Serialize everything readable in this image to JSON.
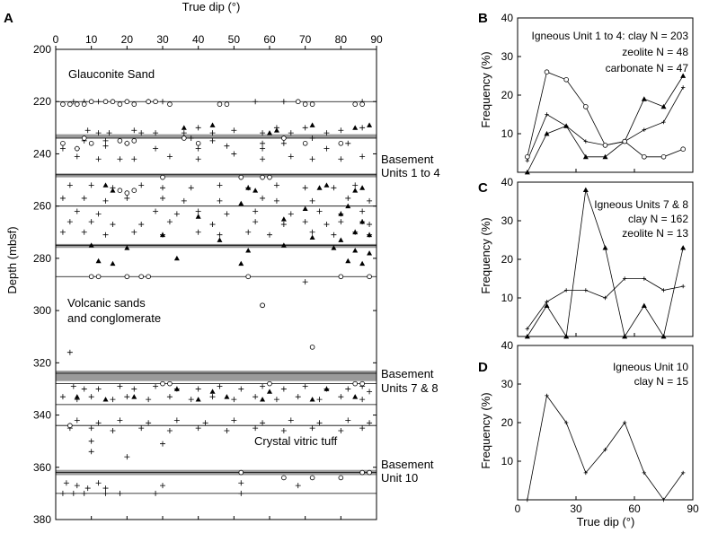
{
  "panels": {
    "A": {
      "letter": "A",
      "xlabel": "True dip (°)",
      "ylabel": "Depth (mbsf)",
      "xticks": [
        "0",
        "10",
        "20",
        "30",
        "40",
        "50",
        "60",
        "70",
        "80",
        "90"
      ],
      "yticks": [
        "200",
        "220",
        "240",
        "260",
        "280",
        "300",
        "320",
        "340",
        "360",
        "380"
      ],
      "labels": {
        "glauconite": "Glauconite Sand",
        "basement_1_4_a": "Basement",
        "basement_1_4_b": "Units 1 to 4",
        "volcanic_a": "Volcanic sands",
        "volcanic_b": "and conglomerate",
        "basement_7_8_a": "Basement",
        "basement_7_8_b": "Units 7 & 8",
        "crystal": "Crystal vitric tuff",
        "basement_10_a": "Basement",
        "basement_10_b": "Unit 10"
      }
    },
    "B": {
      "letter": "B",
      "legend": [
        "Igneous Unit 1 to 4: clay N = 203",
        "zeolite N = 48",
        "carbonate N = 47"
      ]
    },
    "C": {
      "letter": "C",
      "legend": [
        "Igneous Units 7 & 8",
        "clay N = 162",
        "zeolite N = 13"
      ]
    },
    "D": {
      "letter": "D",
      "legend": [
        "Igneous Unit 10",
        "clay N = 15"
      ],
      "xlabel": "True dip (°)"
    },
    "freq_ylabel": "Frequency (%)",
    "freq_yticks": [
      "10",
      "20",
      "30",
      "40"
    ],
    "freq_xticks": [
      "0",
      "30",
      "60",
      "90"
    ]
  },
  "chart_data": [
    {
      "type": "scatter",
      "panel": "A",
      "xlabel": "True dip (°)",
      "ylabel": "Depth (mbsf)",
      "xlim": [
        0,
        90
      ],
      "ylim": [
        380,
        200
      ],
      "y_inverted": true,
      "x_axis_position": "top",
      "boundaries": [
        220,
        234,
        248,
        260,
        275,
        287,
        324,
        328,
        336,
        344,
        362,
        370
      ],
      "shaded_bands": [
        [
          232.5,
          234
        ],
        [
          247.5,
          249
        ],
        [
          274.5,
          276
        ],
        [
          323,
          327
        ],
        [
          361,
          363
        ]
      ],
      "series": [
        {
          "name": "clay",
          "marker": "plus",
          "x": [
            5,
            8,
            12,
            26,
            30,
            56,
            64,
            86,
            9,
            12,
            15,
            22,
            24,
            28,
            36,
            40,
            44,
            50,
            58,
            62,
            66,
            70,
            76,
            80,
            86,
            8,
            14,
            20,
            38,
            44,
            58,
            64,
            72,
            82,
            2,
            6,
            14,
            28,
            40,
            48,
            58,
            76,
            6,
            12,
            18,
            22,
            32,
            40,
            50,
            58,
            66,
            72,
            80,
            86,
            4,
            10,
            16,
            24,
            30,
            38,
            46,
            54,
            62,
            70,
            78,
            84,
            2,
            8,
            14,
            20,
            30,
            36,
            46,
            58,
            62,
            72,
            82,
            88,
            6,
            12,
            28,
            34,
            40,
            48,
            56,
            66,
            74,
            80,
            86,
            4,
            10,
            16,
            24,
            32,
            44,
            56,
            64,
            70,
            76,
            80,
            86,
            88,
            2,
            8,
            14,
            22,
            30,
            40,
            46,
            54,
            60,
            72,
            78,
            84,
            88,
            70,
            4,
            5,
            8,
            12,
            18,
            22,
            28,
            34,
            40,
            46,
            52,
            58,
            64,
            70,
            76,
            82,
            86,
            88,
            2,
            6,
            10,
            16,
            20,
            26,
            32,
            38,
            44,
            50,
            56,
            62,
            68,
            74,
            80,
            86,
            6,
            12,
            18,
            26,
            34,
            42,
            50,
            58,
            66,
            74,
            82,
            88,
            4,
            10,
            16,
            24,
            32,
            40,
            48,
            56,
            64,
            72,
            80,
            86,
            10,
            10,
            20,
            30,
            3,
            6,
            9,
            12,
            14,
            30,
            52,
            68,
            2,
            5,
            8,
            14,
            18,
            28,
            52
          ],
          "y": [
            220,
            220,
            220,
            220,
            220,
            220,
            220,
            220,
            231,
            232,
            232,
            231,
            232,
            232,
            232,
            230,
            232,
            231,
            232,
            230,
            232,
            230,
            232,
            231,
            230,
            235,
            235,
            236,
            234,
            235,
            236,
            236,
            234,
            236,
            238,
            238,
            237,
            238,
            238,
            237,
            238,
            238,
            241,
            242,
            242,
            242,
            241,
            242,
            240,
            242,
            241,
            242,
            242,
            241,
            252,
            252,
            253,
            252,
            253,
            253,
            252,
            253,
            252,
            253,
            253,
            252,
            257,
            257,
            258,
            257,
            257,
            258,
            258,
            257,
            258,
            258,
            257,
            258,
            262,
            263,
            262,
            263,
            262,
            263,
            262,
            263,
            262,
            263,
            262,
            266,
            266,
            267,
            267,
            266,
            267,
            266,
            267,
            266,
            267,
            266,
            266,
            267,
            270,
            270,
            271,
            270,
            271,
            270,
            271,
            270,
            271,
            270,
            271,
            270,
            271,
            289,
            316,
            329,
            330,
            330,
            329,
            330,
            329,
            330,
            330,
            329,
            330,
            329,
            330,
            329,
            330,
            330,
            329,
            331,
            333,
            334,
            333,
            334,
            333,
            334,
            333,
            334,
            333,
            334,
            333,
            334,
            333,
            334,
            333,
            334,
            342,
            343,
            342,
            343,
            342,
            343,
            342,
            343,
            342,
            343,
            342,
            343,
            345,
            345,
            346,
            345,
            346,
            345,
            346,
            345,
            346,
            345,
            346,
            345,
            350,
            354,
            356,
            351,
            366,
            367,
            368,
            366,
            368,
            367,
            366,
            367,
            370,
            370,
            370,
            370,
            370,
            370,
            370
          ]
        },
        {
          "name": "zeolite",
          "marker": "filled-triangle",
          "x": [
            36,
            44,
            60,
            62,
            72,
            84,
            88,
            14,
            16,
            54,
            56,
            74,
            76,
            84,
            86,
            52,
            70,
            82,
            40,
            64,
            80,
            86,
            30,
            46,
            72,
            80,
            84,
            88,
            10,
            20,
            54,
            64,
            78,
            84,
            88,
            12,
            16,
            34,
            52,
            82,
            86,
            34,
            44,
            60,
            76,
            6,
            14,
            22,
            40,
            48,
            58,
            72,
            84
          ],
          "y": [
            230,
            229,
            232,
            231,
            229,
            230,
            229,
            252,
            254,
            253,
            254,
            253,
            252,
            254,
            253,
            259,
            261,
            260,
            264,
            265,
            263,
            266,
            271,
            273,
            272,
            273,
            270,
            271,
            275,
            276,
            277,
            275,
            276,
            277,
            278,
            281,
            282,
            280,
            282,
            281,
            282,
            330,
            331,
            331,
            330,
            333,
            334,
            333,
            334,
            333,
            334,
            334,
            333
          ]
        },
        {
          "name": "carbonate",
          "marker": "open-circle",
          "x": [
            2,
            4,
            6,
            8,
            10,
            14,
            16,
            18,
            20,
            22,
            26,
            28,
            32,
            46,
            48,
            68,
            70,
            72,
            84,
            86,
            2,
            8,
            10,
            18,
            20,
            22,
            36,
            40,
            64,
            70,
            80,
            6,
            30,
            52,
            58,
            60,
            10,
            12,
            20,
            24,
            26,
            54,
            80,
            88,
            58,
            72,
            58,
            30,
            32,
            60,
            84,
            86,
            4,
            52,
            64,
            72,
            80,
            86,
            88,
            18,
            20,
            22
          ],
          "y": [
            221,
            221,
            221,
            221,
            220,
            220,
            220,
            221,
            220,
            221,
            220,
            220,
            221,
            221,
            221,
            220,
            221,
            221,
            221,
            221,
            236,
            234,
            236,
            235,
            236,
            235,
            234,
            236,
            234,
            236,
            236,
            238,
            249,
            249,
            249,
            249,
            287,
            287,
            287,
            287,
            287,
            287,
            287,
            287,
            298,
            314,
            298,
            328,
            328,
            328,
            328,
            328,
            344,
            362,
            364,
            364,
            364,
            362,
            362,
            254,
            255,
            254
          ]
        }
      ]
    },
    {
      "type": "line",
      "panel": "B",
      "xlabel": "",
      "ylabel": "Frequency (%)",
      "xlim": [
        0,
        90
      ],
      "ylim": [
        0,
        40
      ],
      "x": [
        5,
        15,
        25,
        35,
        45,
        55,
        65,
        75,
        85
      ],
      "series": [
        {
          "name": "clay N = 203",
          "marker": "small-plus",
          "values": [
            3,
            15,
            12,
            8,
            7,
            8,
            11,
            13,
            22
          ]
        },
        {
          "name": "zeolite N = 48",
          "marker": "filled-triangle",
          "values": [
            0,
            10,
            12,
            4,
            4,
            8,
            19,
            17,
            25
          ]
        },
        {
          "name": "carbonate N = 47",
          "marker": "open-circle",
          "values": [
            4,
            26,
            24,
            17,
            7,
            8,
            4,
            4,
            6
          ]
        }
      ]
    },
    {
      "type": "line",
      "panel": "C",
      "xlabel": "",
      "ylabel": "Frequency (%)",
      "xlim": [
        0,
        90
      ],
      "ylim": [
        0,
        40
      ],
      "x": [
        5,
        15,
        25,
        35,
        45,
        55,
        65,
        75,
        85
      ],
      "series": [
        {
          "name": "clay N = 162",
          "marker": "small-plus",
          "values": [
            2,
            9,
            12,
            12,
            10,
            15,
            15,
            12,
            13
          ]
        },
        {
          "name": "zeolite N = 13",
          "marker": "filled-triangle",
          "values": [
            0,
            8,
            0,
            38,
            23,
            0,
            8,
            0,
            23
          ]
        }
      ]
    },
    {
      "type": "line",
      "panel": "D",
      "xlabel": "True dip (°)",
      "ylabel": "Frequency (%)",
      "xlim": [
        0,
        90
      ],
      "ylim": [
        0,
        40
      ],
      "x": [
        5,
        15,
        25,
        35,
        45,
        55,
        65,
        75,
        85
      ],
      "series": [
        {
          "name": "clay N = 15",
          "marker": "small-plus",
          "values": [
            0,
            27,
            20,
            7,
            13,
            20,
            7,
            0,
            7
          ]
        }
      ]
    }
  ]
}
